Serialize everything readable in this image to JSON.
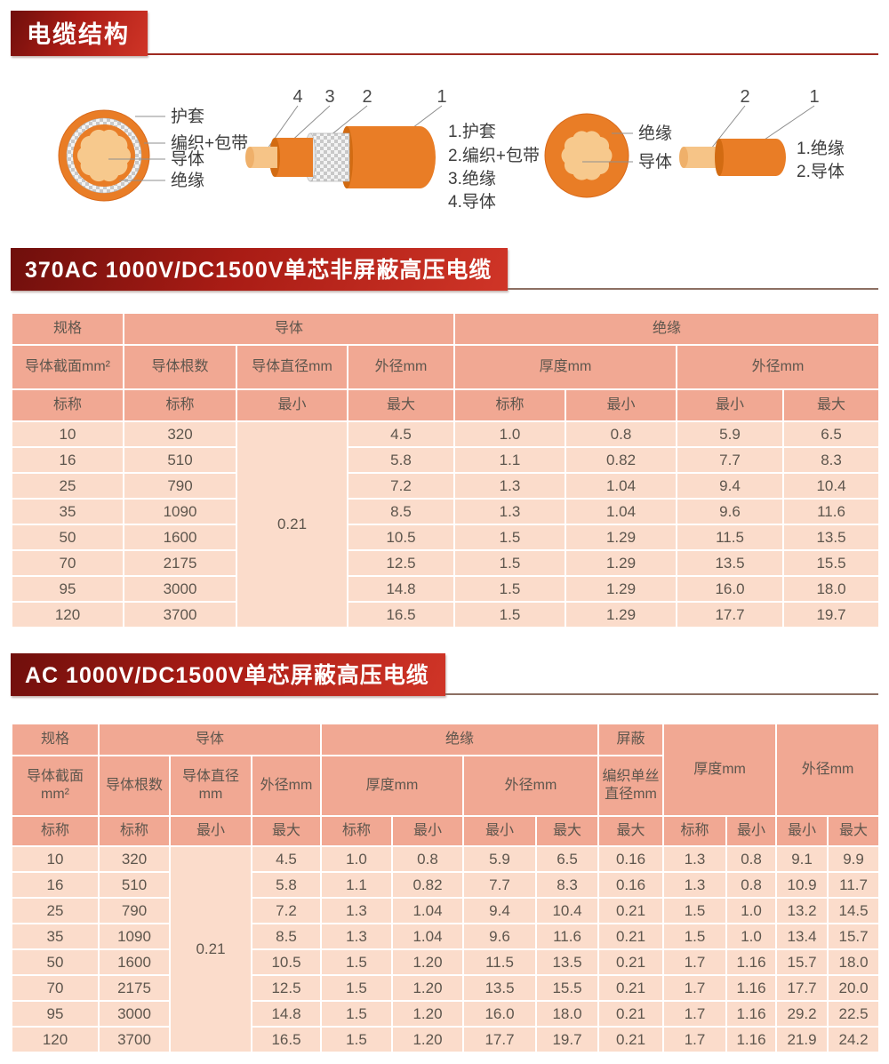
{
  "colors": {
    "banner_red": "#a91c15",
    "banner_red_dark": "#6f0f0c",
    "header_salmon": "#f1a893",
    "row_pink": "#fbdccb",
    "cable_orange": "#e97d26",
    "conductor_light": "#f6c487",
    "table_text": "#5e564d"
  },
  "header": {
    "title": "电缆结构"
  },
  "diagram": {
    "cs1": {
      "labels": {
        "sheath": "护套",
        "braid": "编织+包带",
        "conductor": "导体",
        "insulation": "绝缘"
      }
    },
    "sv1": {
      "callouts": [
        "4",
        "3",
        "2",
        "1"
      ],
      "legend": [
        "1.护套",
        "2.编织+包带",
        "3.绝缘",
        "4.导体"
      ]
    },
    "cs2": {
      "labels": {
        "insulation": "绝缘",
        "conductor": "导体"
      }
    },
    "sv2": {
      "callouts": [
        "2",
        "1"
      ],
      "legend": [
        "1.绝缘",
        "2.导体"
      ]
    }
  },
  "section1": {
    "banner": "370AC 1000V/DC1500V单芯非屏蔽高压电缆",
    "table": {
      "group_headers": {
        "spec": "规格",
        "conductor": "导体",
        "insulation": "绝缘"
      },
      "sub_headers": {
        "cross_section": "导体截面mm²",
        "strands": "导体根数",
        "diameter": "导体直径mm",
        "od": "外径mm",
        "thickness": "厚度mm",
        "od2": "外径mm"
      },
      "min_max": [
        "标称",
        "标称",
        "最小",
        "最大",
        "标称",
        "最小",
        "最小",
        "最大"
      ],
      "rows": [
        [
          "10",
          "320",
          {
            "v": "0.21",
            "rowspan": 8
          },
          "4.5",
          "1.0",
          "0.8",
          "5.9",
          "6.5"
        ],
        [
          "16",
          "510",
          null,
          "5.8",
          "1.1",
          "0.82",
          "7.7",
          "8.3"
        ],
        [
          "25",
          "790",
          null,
          "7.2",
          "1.3",
          "1.04",
          "9.4",
          "10.4"
        ],
        [
          "35",
          "1090",
          null,
          "8.5",
          "1.3",
          "1.04",
          "9.6",
          "11.6"
        ],
        [
          "50",
          "1600",
          null,
          "10.5",
          "1.5",
          "1.29",
          "11.5",
          "13.5"
        ],
        [
          "70",
          "2175",
          null,
          "12.5",
          "1.5",
          "1.29",
          "13.5",
          "15.5"
        ],
        [
          "95",
          "3000",
          null,
          "14.8",
          "1.5",
          "1.29",
          "16.0",
          "18.0"
        ],
        [
          "120",
          "3700",
          null,
          "16.5",
          "1.5",
          "1.29",
          "17.7",
          "19.7"
        ]
      ]
    }
  },
  "section2": {
    "banner": "AC 1000V/DC1500V单芯屏蔽高压电缆",
    "table": {
      "group_headers": {
        "spec": "规格",
        "conductor": "导体",
        "insulation": "绝缘",
        "shield": "屏蔽",
        "sheath_thickness": "厚度mm",
        "sheath_od": "外径mm"
      },
      "sub_headers": {
        "cross_section": "导体截面mm²",
        "strands": "导体根数",
        "diameter": "导体直径mm",
        "od": "外径mm",
        "thickness": "厚度mm",
        "od2": "外径mm",
        "braid_wire": "编织单丝直径mm"
      },
      "min_max": [
        "标称",
        "标称",
        "最小",
        "最大",
        "标称",
        "最小",
        "最小",
        "最大",
        "最大",
        "标称",
        "最小",
        "最小",
        "最大"
      ],
      "rows": [
        [
          "10",
          "320",
          {
            "v": "0.21",
            "rowspan": 8
          },
          "4.5",
          "1.0",
          "0.8",
          "5.9",
          "6.5",
          "0.16",
          "1.3",
          "0.8",
          "9.1",
          "9.9"
        ],
        [
          "16",
          "510",
          null,
          "5.8",
          "1.1",
          "0.82",
          "7.7",
          "8.3",
          "0.16",
          "1.3",
          "0.8",
          "10.9",
          "11.7"
        ],
        [
          "25",
          "790",
          null,
          "7.2",
          "1.3",
          "1.04",
          "9.4",
          "10.4",
          "0.21",
          "1.5",
          "1.0",
          "13.2",
          "14.5"
        ],
        [
          "35",
          "1090",
          null,
          "8.5",
          "1.3",
          "1.04",
          "9.6",
          "11.6",
          "0.21",
          "1.5",
          "1.0",
          "13.4",
          "15.7"
        ],
        [
          "50",
          "1600",
          null,
          "10.5",
          "1.5",
          "1.20",
          "11.5",
          "13.5",
          "0.21",
          "1.7",
          "1.16",
          "15.7",
          "18.0"
        ],
        [
          "70",
          "2175",
          null,
          "12.5",
          "1.5",
          "1.20",
          "13.5",
          "15.5",
          "0.21",
          "1.7",
          "1.16",
          "17.7",
          "20.0"
        ],
        [
          "95",
          "3000",
          null,
          "14.8",
          "1.5",
          "1.20",
          "16.0",
          "18.0",
          "0.21",
          "1.7",
          "1.16",
          "29.2",
          "22.5"
        ],
        [
          "120",
          "3700",
          null,
          "16.5",
          "1.5",
          "1.20",
          "17.7",
          "19.7",
          "0.21",
          "1.7",
          "1.16",
          "21.9",
          "24.2"
        ]
      ]
    }
  }
}
